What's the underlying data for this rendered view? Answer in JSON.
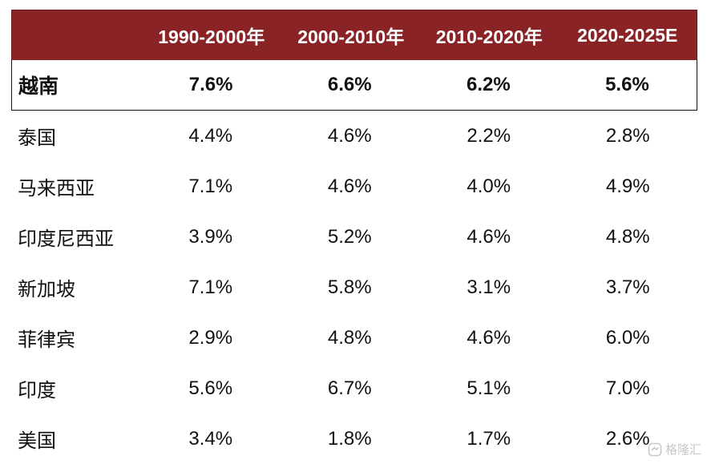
{
  "chart_data": {
    "type": "table",
    "columns": [
      "",
      "1990-2000年",
      "2000-2010年",
      "2010-2020年",
      "2020-2025E"
    ],
    "rows": [
      {
        "label": "越南",
        "values": [
          "7.6%",
          "6.6%",
          "6.2%",
          "5.6%"
        ],
        "highlight": true
      },
      {
        "label": "泰国",
        "values": [
          "4.4%",
          "4.6%",
          "2.2%",
          "2.8%"
        ]
      },
      {
        "label": "马来西亚",
        "values": [
          "7.1%",
          "4.6%",
          "4.0%",
          "4.9%"
        ]
      },
      {
        "label": "印度尼西亚",
        "values": [
          "3.9%",
          "5.2%",
          "4.6%",
          "4.8%"
        ]
      },
      {
        "label": "新加坡",
        "values": [
          "7.1%",
          "5.8%",
          "3.1%",
          "3.7%"
        ]
      },
      {
        "label": "菲律宾",
        "values": [
          "2.9%",
          "4.8%",
          "4.6%",
          "6.0%"
        ]
      },
      {
        "label": "印度",
        "values": [
          "5.6%",
          "6.7%",
          "5.1%",
          "7.0%"
        ]
      },
      {
        "label": "美国",
        "values": [
          "3.4%",
          "1.8%",
          "1.7%",
          "2.6%"
        ]
      }
    ]
  },
  "style": {
    "header_bg": "#8a2325",
    "header_text": "#ffffff"
  },
  "watermark": {
    "text": "格隆汇",
    "icon": "gelonghui-logo-icon"
  }
}
